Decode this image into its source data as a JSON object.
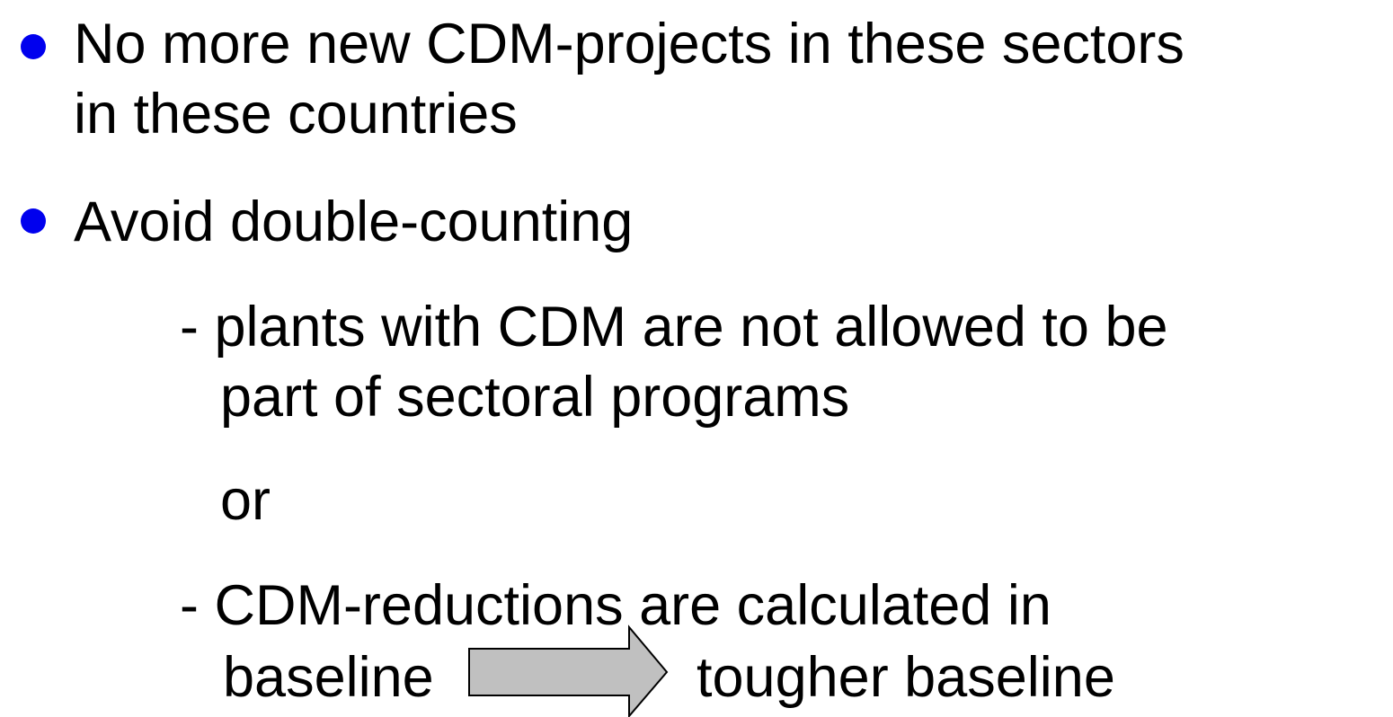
{
  "bullets": [
    {
      "lines": [
        "No more new CDM-projects in these sectors",
        "in these countries"
      ]
    },
    {
      "lines": [
        "Avoid double-counting"
      ]
    }
  ],
  "options": {
    "first": [
      "- plants with CDM are not allowed to be",
      "part of sectoral programs"
    ],
    "connector": "or",
    "second": [
      "- CDM-reductions are calculated in",
      "baseline"
    ],
    "result": "tougher baseline"
  }
}
